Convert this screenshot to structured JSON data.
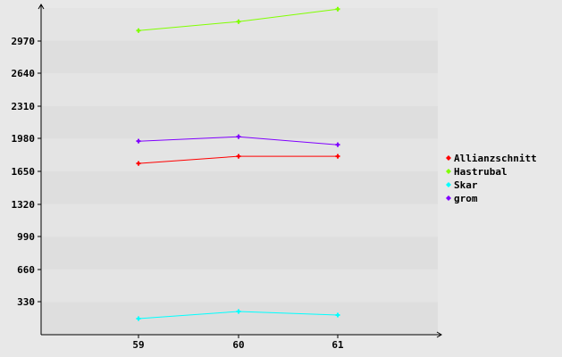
{
  "chart_data": {
    "type": "line",
    "title": "",
    "xlabel": "",
    "ylabel": "",
    "categories": [
      "59",
      "60",
      "61"
    ],
    "yticks": [
      330,
      660,
      990,
      1320,
      1650,
      1980,
      2310,
      2640,
      2970
    ],
    "ylim": [
      0,
      3300
    ],
    "grid": "alternating horizontal bands",
    "legend_position": "right",
    "series": [
      {
        "name": "Allianzschnitt",
        "color": "#ff0000",
        "values": [
          1730,
          1802,
          1802
        ]
      },
      {
        "name": "Hastrubal",
        "color": "#80ff00",
        "values": [
          3072,
          3163,
          3289
        ]
      },
      {
        "name": "Skar",
        "color": "#00ffff",
        "values": [
          162,
          234,
          198
        ]
      },
      {
        "name": "grom",
        "color": "#8000ff",
        "values": [
          1955,
          2000,
          1919
        ]
      }
    ]
  }
}
